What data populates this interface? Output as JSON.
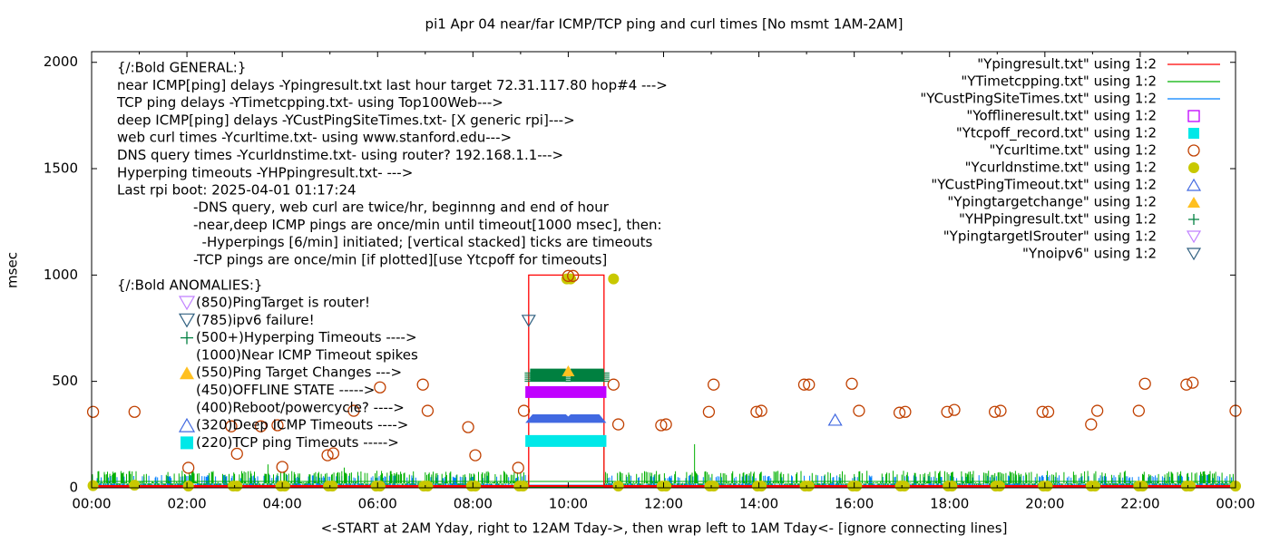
{
  "chart_data": {
    "type": "scatter",
    "title": "pi1 Apr 04  near/far ICMP/TCP ping and curl times [No msmt 1AM-2AM]",
    "xlabel": "<-START at 2AM Yday, right to 12AM Tday->, then wrap left to 1AM Tday<- [ignore connecting lines]",
    "ylabel": "msec",
    "xlim_hours": [
      0,
      24
    ],
    "ylim": [
      0,
      2050
    ],
    "x_ticks": [
      "00:00",
      "02:00",
      "04:00",
      "06:00",
      "08:00",
      "10:00",
      "12:00",
      "14:00",
      "16:00",
      "18:00",
      "20:00",
      "22:00",
      "00:00"
    ],
    "y_ticks": [
      "0",
      "500",
      "1000",
      "1500",
      "2000"
    ],
    "y_tick_values": [
      0,
      500,
      1000,
      1500,
      2000
    ],
    "grid": false,
    "legend_placement": "top-right",
    "legend": [
      {
        "label": "\"Ypingresult.txt\" using 1:2",
        "kind": "line",
        "color": "#ff0000"
      },
      {
        "label": "\"YTimetcpping.txt\" using 1:2",
        "kind": "line",
        "color": "#00b000"
      },
      {
        "label": "\"YCustPingSiteTimes.txt\" using 1:2",
        "kind": "line",
        "color": "#0080ff"
      },
      {
        "label": "\"Yofflineresult.txt\" using 1:2",
        "kind": "square-open",
        "color": "#c000ff"
      },
      {
        "label": "\"Ytcpoff_record.txt\" using 1:2",
        "kind": "square-filled",
        "color": "#00e8e8"
      },
      {
        "label": "\"Ycurltime.txt\" using 1:2",
        "kind": "circle-open",
        "color": "#c04000"
      },
      {
        "label": "\"Ycurldnstime.txt\" using 1:2",
        "kind": "circle-filled",
        "color": "#c8c800"
      },
      {
        "label": "\"YCustPingTimeout.txt\" using 1:2",
        "kind": "triangle-open",
        "color": "#4169e1"
      },
      {
        "label": "\"Ypingtargetchange\" using 1:2",
        "kind": "triangle-filled",
        "color": "#ffc020"
      },
      {
        "label": "\"YHPpingresult.txt\" using 1:2",
        "kind": "plus",
        "color": "#008040"
      },
      {
        "label": "\"YpingtargetISrouter\" using 1:2",
        "kind": "triangle-down-open",
        "color": "#c080ff"
      },
      {
        "label": "\"Ynoipv6\" using 1:2",
        "kind": "triangle-down-open",
        "color": "#306080"
      }
    ],
    "annotations": {
      "general": [
        "{/:Bold GENERAL:}",
        "near ICMP[ping] delays -Ypingresult.txt last hour target 72.31.117.80 hop#4 --->",
        "TCP ping delays -YTimetcpping.txt- using Top100Web--->",
        "deep ICMP[ping] delays -YCustPingSiteTimes.txt- [X generic rpi]--->",
        "web curl times -Ycurltime.txt- using www.stanford.edu--->",
        "DNS query times -Ycurldnstime.txt- using router? 192.168.1.1--->",
        "Hyperping timeouts -YHPpingresult.txt- --->",
        "Last rpi boot: 2025-04-01 01:17:24"
      ],
      "notes": [
        "-DNS query, web curl are twice/hr, beginnng and end of hour",
        "-near,deep ICMP pings are once/min until timeout[1000 msec], then:",
        "  -Hyperpings [6/min] initiated; [vertical stacked] ticks are timeouts",
        "-TCP pings are once/min [if plotted][use Ytcpoff for timeouts]"
      ],
      "anomalies_title": "{/:Bold ANOMALIES:}",
      "anomalies": [
        {
          "text": "(850)PingTarget is router!",
          "symbol": "triangle-down-open",
          "color": "#c080ff"
        },
        {
          "text": "(785)ipv6 failure!",
          "symbol": "triangle-down-open",
          "color": "#306080"
        },
        {
          "text": "(500+)Hyperping Timeouts ---->",
          "symbol": "plus",
          "color": "#008040"
        },
        {
          "text": "(1000)Near ICMP Timeout spikes",
          "symbol": "none",
          "color": ""
        },
        {
          "text": "(550)Ping Target Changes --->",
          "symbol": "triangle-filled",
          "color": "#ffc020"
        },
        {
          "text": "(450)OFFLINE STATE ----->",
          "symbol": "none",
          "color": ""
        },
        {
          "text": "(400)Reboot/powercycle? ---->",
          "symbol": "none",
          "color": ""
        },
        {
          "text": "(320)Deep ICMP Timeouts ---->",
          "symbol": "triangle-open",
          "color": "#4169e1"
        },
        {
          "text": "(220)TCP ping Timeouts ----->",
          "symbol": "square-filled",
          "color": "#00e8e8"
        }
      ]
    },
    "outage_hours": [
      9.17,
      10.75
    ],
    "series": {
      "near_icmp": {
        "baseline_ms": 5,
        "outage_value": 1000
      },
      "tcp_ping": {
        "typical_range": [
          0,
          80
        ],
        "spikes": [
          [
            12.65,
            205
          ],
          [
            3.7,
            110
          ],
          [
            5.3,
            95
          ],
          [
            8.2,
            70
          ],
          [
            1.9,
            80
          ]
        ]
      },
      "deep_icmp": {
        "typical_range": [
          0,
          60
        ]
      },
      "offline": {
        "value": 450,
        "range_hours": [
          9.1,
          10.8
        ]
      },
      "tcp_timeouts": {
        "value": 220,
        "range_hours": [
          9.1,
          10.8
        ]
      },
      "deep_timeouts": {
        "value": 320,
        "range_hours": [
          9.1,
          10.8
        ],
        "points": [
          [
            15.6,
            320
          ]
        ]
      },
      "hyperping": {
        "value_min": 500,
        "value_max": 560,
        "ranges_hours": [
          [
            9.2,
            9.95
          ],
          [
            10.05,
            10.75
          ]
        ]
      },
      "target_change": [
        [
          10.0,
          550
        ]
      ],
      "noipv6": [
        [
          9.17,
          785
        ]
      ],
      "curl": [
        [
          0.03,
          357
        ],
        [
          0.9,
          357
        ],
        [
          2.03,
          94
        ],
        [
          2.93,
          289
        ],
        [
          3.05,
          160
        ],
        [
          3.55,
          289
        ],
        [
          3.9,
          294
        ],
        [
          4.0,
          98
        ],
        [
          4.95,
          153
        ],
        [
          5.07,
          162
        ],
        [
          5.5,
          362
        ],
        [
          6.05,
          472
        ],
        [
          6.95,
          485
        ],
        [
          7.05,
          362
        ],
        [
          7.9,
          285
        ],
        [
          8.05,
          153
        ],
        [
          8.95,
          94
        ],
        [
          9.07,
          362
        ],
        [
          10.0,
          996
        ],
        [
          10.1,
          996
        ],
        [
          10.95,
          485
        ],
        [
          11.05,
          298
        ],
        [
          11.95,
          294
        ],
        [
          12.05,
          298
        ],
        [
          12.95,
          357
        ],
        [
          13.05,
          485
        ],
        [
          13.95,
          357
        ],
        [
          14.05,
          362
        ],
        [
          14.95,
          485
        ],
        [
          15.05,
          485
        ],
        [
          15.95,
          489
        ],
        [
          16.1,
          362
        ],
        [
          16.95,
          353
        ],
        [
          17.07,
          357
        ],
        [
          17.95,
          357
        ],
        [
          18.1,
          366
        ],
        [
          18.95,
          357
        ],
        [
          19.07,
          362
        ],
        [
          19.95,
          357
        ],
        [
          20.07,
          357
        ],
        [
          20.97,
          298
        ],
        [
          21.1,
          362
        ],
        [
          21.97,
          362
        ],
        [
          22.1,
          489
        ],
        [
          22.97,
          485
        ],
        [
          23.1,
          494
        ],
        [
          24.0,
          362
        ]
      ],
      "dns": [
        [
          0.03,
          10
        ],
        [
          0.9,
          12
        ],
        [
          2.03,
          8
        ],
        [
          2.97,
          8
        ],
        [
          3.05,
          8
        ],
        [
          3.97,
          8
        ],
        [
          4.05,
          8
        ],
        [
          4.97,
          8
        ],
        [
          5.05,
          8
        ],
        [
          5.97,
          8
        ],
        [
          6.05,
          8
        ],
        [
          6.97,
          8
        ],
        [
          7.05,
          8
        ],
        [
          7.97,
          8
        ],
        [
          8.05,
          8
        ],
        [
          8.97,
          8
        ],
        [
          9.05,
          8
        ],
        [
          9.97,
          982
        ],
        [
          10.05,
          982
        ],
        [
          10.95,
          982
        ],
        [
          11.05,
          8
        ],
        [
          11.97,
          8
        ],
        [
          12.05,
          8
        ],
        [
          12.97,
          8
        ],
        [
          13.05,
          8
        ],
        [
          13.97,
          8
        ],
        [
          14.05,
          8
        ],
        [
          14.97,
          8
        ],
        [
          15.05,
          8
        ],
        [
          15.97,
          8
        ],
        [
          16.05,
          8
        ],
        [
          16.97,
          8
        ],
        [
          17.05,
          8
        ],
        [
          17.97,
          8
        ],
        [
          18.05,
          8
        ],
        [
          18.97,
          8
        ],
        [
          19.05,
          8
        ],
        [
          19.97,
          8
        ],
        [
          20.05,
          8
        ],
        [
          20.97,
          8
        ],
        [
          21.05,
          8
        ],
        [
          21.97,
          8
        ],
        [
          22.05,
          8
        ],
        [
          22.97,
          8
        ],
        [
          23.05,
          8
        ],
        [
          24.0,
          8
        ]
      ]
    }
  }
}
